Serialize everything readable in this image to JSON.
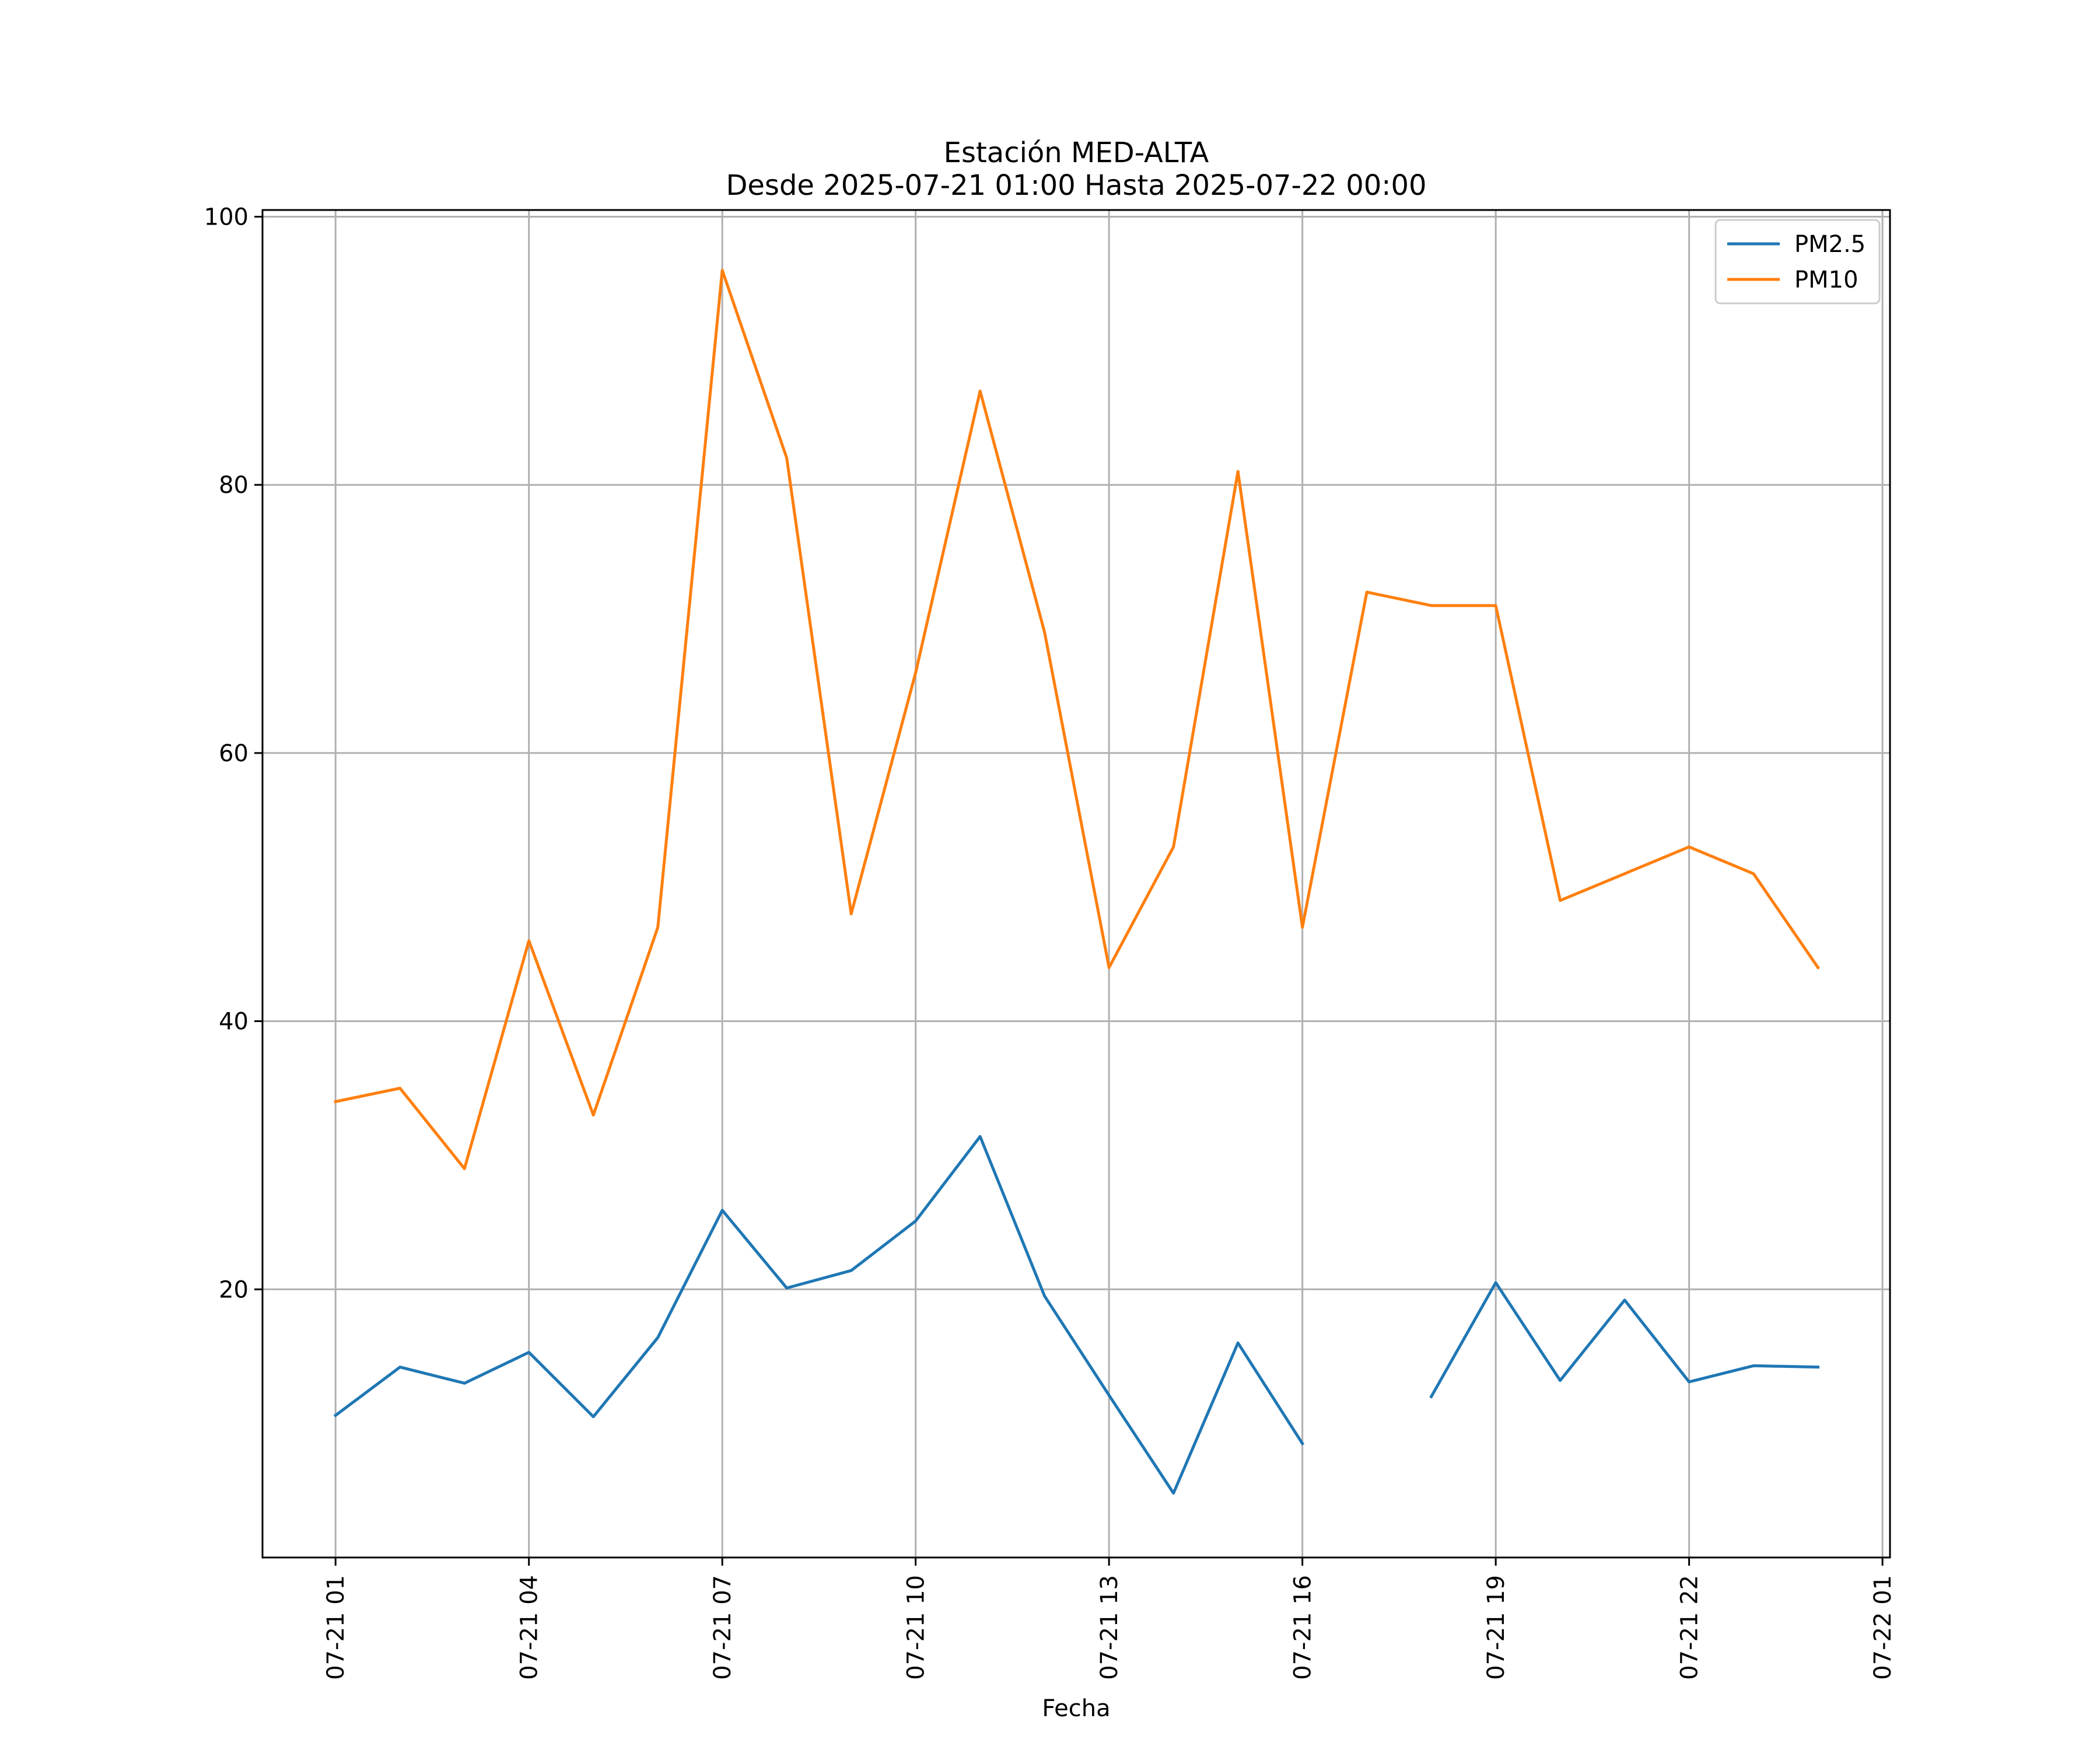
{
  "chart_data": {
    "type": "line",
    "title": "Estación MED-ALTA",
    "subtitle": "Desde 2025-07-21 01:00 Hasta 2025-07-22 00:00",
    "xlabel": "Fecha",
    "ylabel": "",
    "x": [
      "2025-07-21 01:00",
      "2025-07-21 02:00",
      "2025-07-21 03:00",
      "2025-07-21 04:00",
      "2025-07-21 05:00",
      "2025-07-21 06:00",
      "2025-07-21 07:00",
      "2025-07-21 08:00",
      "2025-07-21 09:00",
      "2025-07-21 10:00",
      "2025-07-21 11:00",
      "2025-07-21 12:00",
      "2025-07-21 13:00",
      "2025-07-21 14:00",
      "2025-07-21 15:00",
      "2025-07-21 16:00",
      "2025-07-21 17:00",
      "2025-07-21 18:00",
      "2025-07-21 19:00",
      "2025-07-21 20:00",
      "2025-07-21 21:00",
      "2025-07-21 22:00",
      "2025-07-21 23:00",
      "2025-07-22 00:00"
    ],
    "xlim": [
      "2025-07-20 23:52",
      "2025-07-22 01:07"
    ],
    "ylim": [
      0,
      100.5
    ],
    "xticks": [
      "07-21 01",
      "07-21 04",
      "07-21 07",
      "07-21 10",
      "07-21 13",
      "07-21 16",
      "07-21 19",
      "07-21 22",
      "07-22 01"
    ],
    "yticks": [
      "20",
      "40",
      "60",
      "80",
      "100"
    ],
    "grid": true,
    "legend_position": "top-right",
    "series": [
      {
        "name": "PM2.5",
        "color": "#1f77b4",
        "values": [
          10.6,
          14.2,
          13.0,
          15.3,
          10.5,
          16.4,
          25.9,
          20.1,
          21.4,
          25.1,
          31.4,
          19.5,
          12.1,
          4.8,
          16.0,
          8.5,
          null,
          12.0,
          20.5,
          13.2,
          19.2,
          13.1,
          14.3,
          14.2
        ]
      },
      {
        "name": "PM10",
        "color": "#ff7f0e",
        "values": [
          34,
          35,
          29,
          46,
          33,
          47,
          96,
          82,
          48,
          66,
          87,
          69,
          44,
          53,
          81,
          47,
          72,
          71,
          71,
          49,
          51,
          53,
          51,
          44
        ]
      }
    ]
  }
}
